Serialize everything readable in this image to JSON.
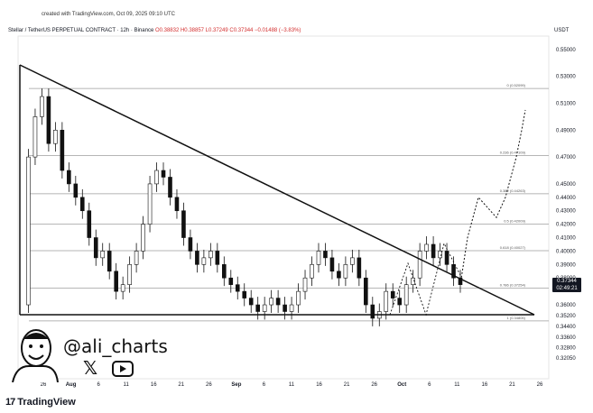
{
  "created": "created with TradingView.com, Oct 09, 2025 09:10 UTC",
  "header": {
    "symbol": "Stellar / TetherUS PERPETUAL CONTRACT · 12h · Binance",
    "ohlc": "O0.38832 H0.38857 L0.37249 C0.37344 −0.01488 (−3.83%)"
  },
  "unit": "USDT",
  "price_tag": {
    "price": "0.37344",
    "countdown": "02:49:21"
  },
  "handle": "@ali_charts",
  "brand": "TradingView",
  "icons": {
    "x": "x-logo-icon",
    "youtube": "youtube-icon",
    "tv": "tradingview-logo-icon"
  },
  "chart_data": {
    "type": "line",
    "title": "",
    "ylim": [
      0.305,
      0.56
    ],
    "y_ticks": [
      "0.55000",
      "0.53000",
      "0.51000",
      "0.49000",
      "0.47000",
      "0.45000",
      "0.44000",
      "0.43000",
      "0.42000",
      "0.41000",
      "0.40000",
      "0.39000",
      "0.38000",
      "0.36000",
      "0.35200",
      "0.34400",
      "0.33600",
      "0.32800",
      "0.32050"
    ],
    "x_ticks": [
      "26",
      "Aug",
      "6",
      "11",
      "16",
      "21",
      "26",
      "Sep",
      "6",
      "11",
      "16",
      "21",
      "26",
      "Oct",
      "6",
      "11",
      "16",
      "21",
      "26"
    ],
    "fib_levels": [
      {
        "label": "0 (0.52099)",
        "value": 0.52099
      },
      {
        "label": "0.236 (0.47109)",
        "value": 0.47109
      },
      {
        "label": "0.382 (0.44263)",
        "value": 0.44263
      },
      {
        "label": "0.5 (0.42009)",
        "value": 0.42009
      },
      {
        "label": "0.618 (0.40027)",
        "value": 0.40027
      },
      {
        "label": "0.786 (0.37254)",
        "value": 0.37254
      },
      {
        "label": "1 (0.34805)",
        "value": 0.34805
      }
    ],
    "price_path": [
      0.36,
      0.47,
      0.5,
      0.515,
      0.48,
      0.49,
      0.46,
      0.45,
      0.44,
      0.43,
      0.41,
      0.395,
      0.4,
      0.385,
      0.37,
      0.375,
      0.39,
      0.4,
      0.42,
      0.45,
      0.46,
      0.455,
      0.44,
      0.43,
      0.41,
      0.4,
      0.39,
      0.395,
      0.4,
      0.39,
      0.38,
      0.375,
      0.37,
      0.365,
      0.36,
      0.355,
      0.36,
      0.365,
      0.36,
      0.355,
      0.36,
      0.37,
      0.38,
      0.39,
      0.4,
      0.395,
      0.385,
      0.38,
      0.39,
      0.395,
      0.38,
      0.36,
      0.35,
      0.355,
      0.37,
      0.365,
      0.36,
      0.375,
      0.38,
      0.4,
      0.405,
      0.395,
      0.4,
      0.39,
      0.38,
      0.375
    ],
    "projection": [
      0.375,
      0.41,
      0.44,
      0.425,
      0.44,
      0.47,
      0.49,
      0.505
    ]
  }
}
